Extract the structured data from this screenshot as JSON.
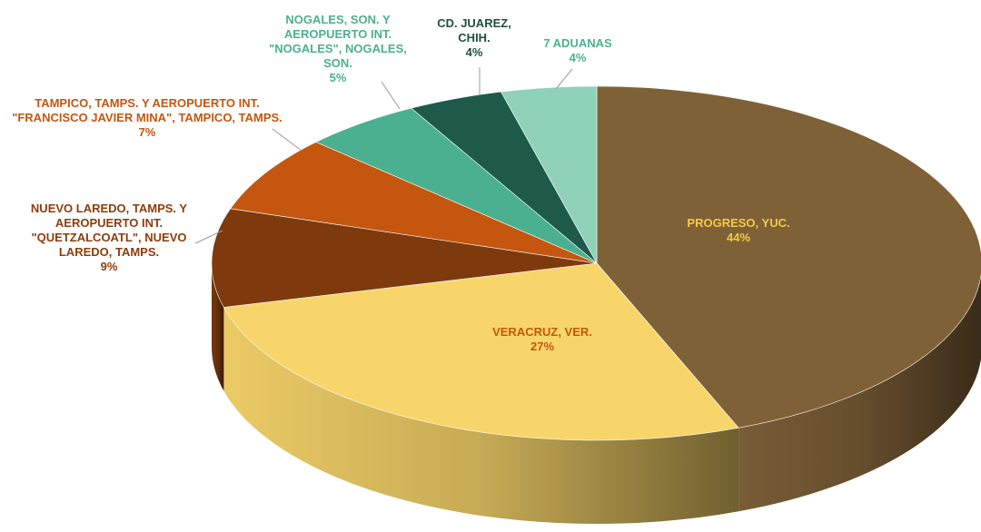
{
  "chart_data": {
    "type": "pie",
    "categories": [
      "PROGRESO, YUC.",
      "VERACRUZ, VER.",
      "NUEVO LAREDO, TAMPS. Y AEROPUERTO INT. \"QUETZALCOATL\", NUEVO LAREDO, TAMPS.",
      "TAMPICO, TAMPS. Y AEROPUERTO INT. \"FRANCISCO JAVIER MINA\", TAMPICO, TAMPS.",
      "NOGALES, SON. Y AEROPUERTO INT. \"NOGALES\", NOGALES, SON.",
      "CD. JUAREZ, CHIH.",
      "7 ADUANAS"
    ],
    "values": [
      44,
      27,
      9,
      7,
      5,
      4,
      4
    ],
    "value_labels": [
      "44%",
      "27%",
      "9%",
      "7%",
      "5%",
      "4%",
      "4%"
    ],
    "colors": [
      "#7f6138",
      "#f8d56a",
      "#7e3a0d",
      "#c4560f",
      "#4bb08f",
      "#1e5a4a",
      "#90d1b9"
    ],
    "label_colors": [
      "#f6c943",
      "#c4560f",
      "#8b3d0c",
      "#c4560f",
      "#4bb08f",
      "#1e4f40",
      "#4bb08f"
    ]
  }
}
